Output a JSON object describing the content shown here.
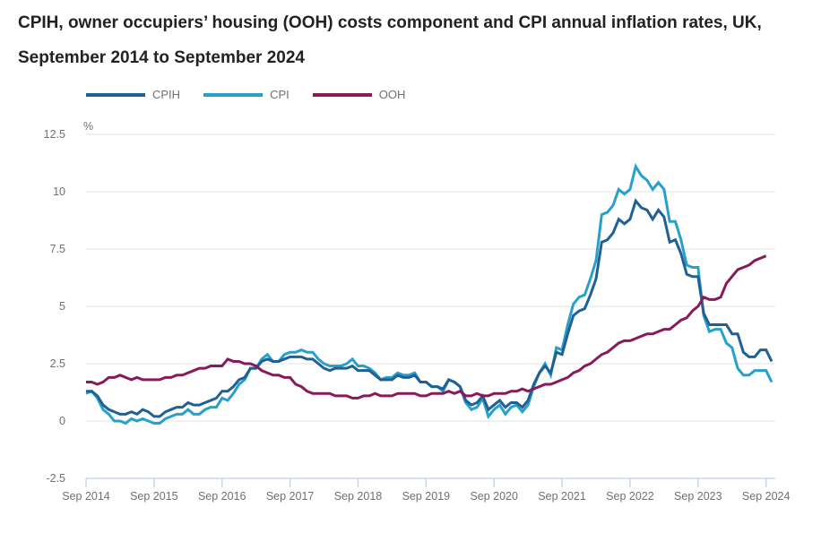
{
  "chart_data": {
    "type": "line",
    "title": "CPIH, owner occupiers’ housing (OOH) costs component and CPI annual inflation rates, UK, September 2014 to September 2024",
    "xlabel": "",
    "ylabel": "%",
    "ylim": [
      -2.5,
      12.5
    ],
    "yticks": [
      12.5,
      10,
      7.5,
      5,
      2.5,
      0,
      -2.5
    ],
    "ytick_labels": [
      "12.5",
      "10",
      "7.5",
      "5",
      "2.5",
      "0",
      "-2.5"
    ],
    "xtick_labels": [
      "Sep 2014",
      "Sep 2015",
      "Sep 2016",
      "Sep 2017",
      "Sep 2018",
      "Sep 2019",
      "Sep 2020",
      "Sep 2021",
      "Sep 2022",
      "Sep 2023",
      "Sep 2024"
    ],
    "x_start": "Sep 2014",
    "x_end": "Sep 2024",
    "frequency": "monthly",
    "grid": true,
    "legend_position": "top-left",
    "series": [
      {
        "name": "CPIH",
        "color": "#206095",
        "values": [
          1.3,
          1.3,
          1.1,
          0.7,
          0.5,
          0.4,
          0.3,
          0.3,
          0.4,
          0.3,
          0.5,
          0.4,
          0.2,
          0.2,
          0.4,
          0.5,
          0.6,
          0.6,
          0.8,
          0.7,
          0.7,
          0.8,
          0.9,
          1.0,
          1.3,
          1.3,
          1.5,
          1.8,
          1.9,
          2.3,
          2.3,
          2.6,
          2.7,
          2.6,
          2.6,
          2.7,
          2.8,
          2.8,
          2.8,
          2.7,
          2.7,
          2.5,
          2.3,
          2.2,
          2.3,
          2.3,
          2.3,
          2.4,
          2.2,
          2.2,
          2.2,
          2.0,
          1.8,
          1.8,
          1.8,
          2.0,
          1.9,
          1.9,
          2.0,
          1.7,
          1.7,
          1.5,
          1.5,
          1.4,
          1.8,
          1.7,
          1.5,
          0.9,
          0.7,
          0.8,
          1.1,
          0.5,
          0.7,
          0.9,
          0.6,
          0.8,
          0.8,
          0.6,
          0.9,
          1.6,
          2.1,
          2.4,
          2.1,
          3.0,
          2.9,
          3.8,
          4.6,
          4.8,
          4.9,
          5.5,
          6.2,
          7.8,
          7.9,
          8.2,
          8.8,
          8.6,
          8.8,
          9.6,
          9.3,
          9.2,
          8.8,
          9.2,
          8.9,
          7.8,
          7.9,
          7.3,
          6.4,
          6.3,
          6.3,
          4.7,
          4.2,
          4.2,
          4.2,
          4.2,
          3.8,
          3.8,
          3.0,
          2.8,
          2.8,
          3.1,
          3.1,
          2.6
        ],
        "note": "121 monthly values Sep 2014 - Sep 2024"
      },
      {
        "name": "CPI",
        "color": "#27a0cc",
        "values": [
          1.2,
          1.3,
          1.0,
          0.5,
          0.3,
          0.0,
          0.0,
          -0.1,
          0.1,
          0.0,
          0.1,
          0.0,
          -0.1,
          -0.1,
          0.1,
          0.2,
          0.3,
          0.3,
          0.5,
          0.3,
          0.3,
          0.5,
          0.6,
          0.6,
          1.0,
          0.9,
          1.2,
          1.6,
          1.8,
          2.3,
          2.3,
          2.7,
          2.9,
          2.6,
          2.6,
          2.9,
          3.0,
          3.0,
          3.1,
          3.0,
          3.0,
          2.7,
          2.5,
          2.4,
          2.4,
          2.4,
          2.5,
          2.7,
          2.4,
          2.4,
          2.3,
          2.1,
          1.8,
          1.9,
          1.9,
          2.1,
          2.0,
          2.0,
          2.1,
          1.7,
          1.7,
          1.5,
          1.5,
          1.3,
          1.8,
          1.7,
          1.5,
          0.8,
          0.5,
          0.6,
          1.0,
          0.2,
          0.5,
          0.7,
          0.3,
          0.6,
          0.7,
          0.4,
          0.7,
          1.5,
          2.1,
          2.5,
          2.0,
          3.2,
          3.1,
          4.2,
          5.1,
          5.4,
          5.5,
          6.2,
          7.0,
          9.0,
          9.1,
          9.4,
          10.1,
          9.9,
          10.1,
          11.1,
          10.7,
          10.5,
          10.1,
          10.4,
          10.1,
          8.7,
          8.7,
          7.9,
          6.8,
          6.7,
          6.7,
          4.6,
          3.9,
          4.0,
          4.0,
          3.4,
          3.2,
          2.3,
          2.0,
          2.0,
          2.2,
          2.2,
          2.2,
          1.7
        ],
        "note": "121 monthly values Sep 2014 - Sep 2024"
      },
      {
        "name": "OOH",
        "color": "#871a5b",
        "values": [
          1.7,
          1.7,
          1.6,
          1.7,
          1.9,
          1.9,
          2.0,
          1.9,
          1.8,
          1.9,
          1.8,
          1.8,
          1.8,
          1.8,
          1.9,
          1.9,
          2.0,
          2.0,
          2.1,
          2.2,
          2.3,
          2.3,
          2.4,
          2.4,
          2.4,
          2.7,
          2.6,
          2.6,
          2.5,
          2.5,
          2.4,
          2.2,
          2.1,
          2.0,
          2.0,
          1.9,
          1.9,
          1.6,
          1.5,
          1.3,
          1.2,
          1.2,
          1.2,
          1.2,
          1.1,
          1.1,
          1.1,
          1.0,
          1.0,
          1.1,
          1.1,
          1.2,
          1.1,
          1.1,
          1.1,
          1.2,
          1.2,
          1.2,
          1.2,
          1.1,
          1.1,
          1.2,
          1.2,
          1.2,
          1.3,
          1.2,
          1.3,
          1.1,
          1.1,
          1.2,
          1.1,
          1.1,
          1.2,
          1.2,
          1.2,
          1.3,
          1.3,
          1.4,
          1.3,
          1.4,
          1.5,
          1.6,
          1.6,
          1.7,
          1.8,
          1.9,
          2.1,
          2.2,
          2.4,
          2.5,
          2.7,
          2.9,
          3.0,
          3.2,
          3.4,
          3.5,
          3.5,
          3.6,
          3.7,
          3.8,
          3.8,
          3.9,
          4.0,
          4.0,
          4.2,
          4.4,
          4.5,
          4.8,
          5.0,
          5.4,
          5.3,
          5.3,
          5.4,
          6.0,
          6.3,
          6.6,
          6.7,
          6.8,
          7.0,
          7.1,
          7.2
        ],
        "note": "121 monthly values Sep 2014 - Sep 2024"
      }
    ]
  },
  "header": {
    "title": "CPIH, owner occupiers’ housing (OOH) costs component and CPI annual inflation rates, UK, September 2014 to September 2024"
  },
  "legend": {
    "items": [
      {
        "label": "CPIH",
        "color": "#206095"
      },
      {
        "label": "CPI",
        "color": "#27a0cc"
      },
      {
        "label": "OOH",
        "color": "#871a5b"
      }
    ]
  },
  "axis": {
    "y_unit": "%"
  }
}
